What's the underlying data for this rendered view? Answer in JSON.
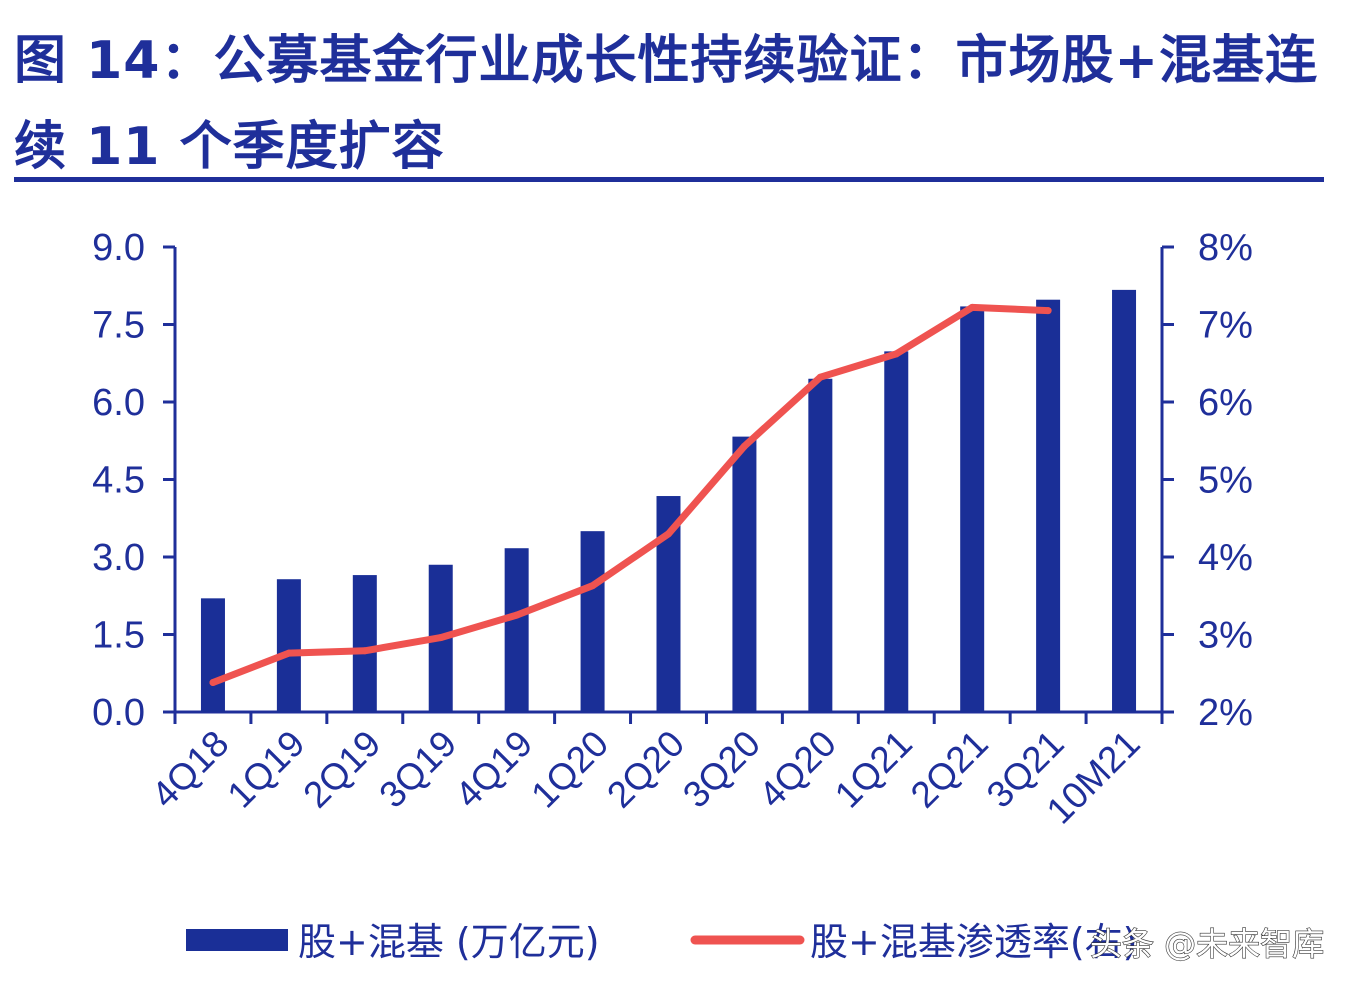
{
  "figure": {
    "title": "图 14：公募基金行业成长性持续验证：市场股+混基连续 11 个季度扩容"
  },
  "watermark": "头条 @未来智库",
  "colors": {
    "bar": "#1a2f97",
    "line": "#ef5350",
    "axis": "#1f2f9a",
    "text": "#1f2f9a"
  },
  "chart_data": {
    "type": "bar",
    "categories": [
      "4Q18",
      "1Q19",
      "2Q19",
      "3Q19",
      "4Q19",
      "1Q20",
      "2Q20",
      "3Q20",
      "4Q20",
      "1Q21",
      "2Q21",
      "3Q21",
      "10M21"
    ],
    "series": [
      {
        "name": "股+混基 (万亿元)",
        "type": "bar",
        "axis": "left",
        "values": [
          2.2,
          2.57,
          2.65,
          2.85,
          3.17,
          3.5,
          4.18,
          5.33,
          6.45,
          6.98,
          7.85,
          7.98,
          8.17
        ]
      },
      {
        "name": "股+混基渗透率(右)",
        "type": "line",
        "axis": "right",
        "values": [
          2.38,
          2.76,
          2.79,
          2.96,
          3.25,
          3.63,
          4.3,
          5.43,
          6.32,
          6.62,
          7.22,
          7.18,
          null
        ]
      }
    ],
    "y_left": {
      "min": 0,
      "max": 9,
      "ticks": [
        "0.0",
        "1.5",
        "3.0",
        "4.5",
        "6.0",
        "7.5",
        "9.0"
      ]
    },
    "y_right": {
      "min": 2,
      "max": 8,
      "ticks": [
        "2%",
        "3%",
        "4%",
        "5%",
        "6%",
        "7%",
        "8%"
      ]
    },
    "legend": "bottom",
    "grid": false
  }
}
